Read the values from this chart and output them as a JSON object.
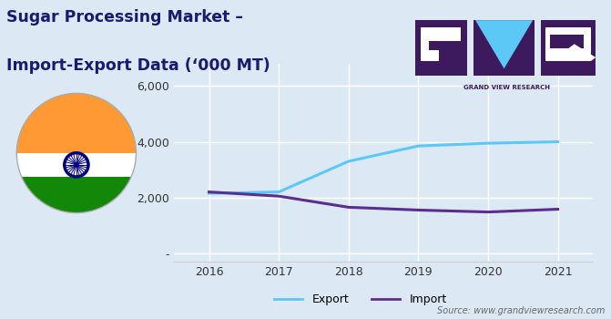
{
  "title_line1": "Sugar Processing Market –",
  "title_line2": "Import-Export Data (‘000 MT)",
  "years": [
    2016,
    2017,
    2018,
    2019,
    2020,
    2021
  ],
  "export": [
    2150,
    2200,
    3300,
    3850,
    3950,
    4000
  ],
  "import": [
    2200,
    2050,
    1650,
    1550,
    1480,
    1580
  ],
  "export_color": "#5BC8F5",
  "import_color": "#5B2D8E",
  "background_color": "#dce9f5",
  "plot_bg_color": "#dce9f5",
  "ylim": [
    -300,
    6800
  ],
  "source_text": "Source: www.grandviewresearch.com",
  "legend_export": "Export",
  "legend_import": "Import",
  "line_width": 2.2,
  "title_color": "#1a1a6e",
  "title_fontsize": 12.5,
  "axis_fontsize": 9,
  "source_fontsize": 7,
  "flag_orange": "#FF9933",
  "flag_white": "#FFFFFF",
  "flag_green": "#138808",
  "flag_chakra": "#000080",
  "logo_bg": "#3d1a5e",
  "logo_v_color": "#5BC8F5",
  "logo_text": "GRAND VIEW RESEARCH"
}
